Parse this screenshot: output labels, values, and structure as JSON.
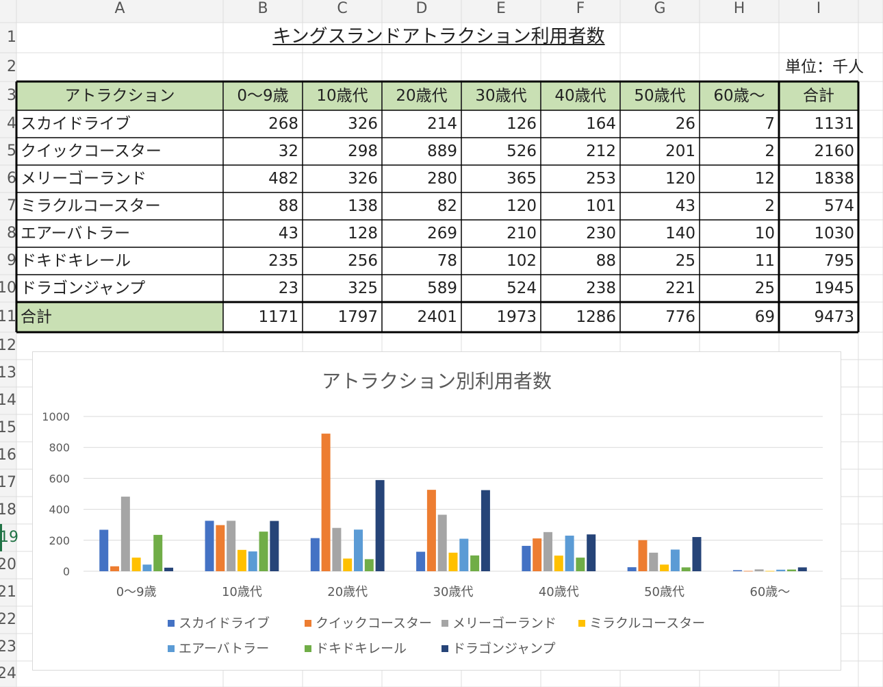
{
  "sheet": {
    "columns": [
      "A",
      "B",
      "C",
      "D",
      "E",
      "F",
      "G",
      "H",
      "I"
    ],
    "rows": [
      "1",
      "2",
      "3",
      "4",
      "5",
      "6",
      "7",
      "8",
      "9",
      "10",
      "11",
      "12",
      "13",
      "14",
      "15",
      "16",
      "17",
      "18",
      "19",
      "20",
      "21",
      "22",
      "23",
      "24"
    ],
    "active_row": "19"
  },
  "table": {
    "title": "キングスランドアトラクション利用者数",
    "unit": "単位：千人",
    "header": [
      "アトラクション",
      "0〜9歳",
      "10歳代",
      "20歳代",
      "30歳代",
      "40歳代",
      "50歳代",
      "60歳〜",
      "合計"
    ],
    "rows": [
      {
        "name": "スカイドライブ",
        "values": [
          268,
          326,
          214,
          126,
          164,
          26,
          7
        ],
        "total": 1131
      },
      {
        "name": "クイックコースター",
        "values": [
          32,
          298,
          889,
          526,
          212,
          201,
          2
        ],
        "total": 2160
      },
      {
        "name": "メリーゴーランド",
        "values": [
          482,
          326,
          280,
          365,
          253,
          120,
          12
        ],
        "total": 1838
      },
      {
        "name": "ミラクルコースター",
        "values": [
          88,
          138,
          82,
          120,
          101,
          43,
          2
        ],
        "total": 574
      },
      {
        "name": "エアーバトラー",
        "values": [
          43,
          128,
          269,
          210,
          230,
          140,
          10
        ],
        "total": 1030
      },
      {
        "name": "ドキドキレール",
        "values": [
          235,
          256,
          78,
          102,
          88,
          25,
          11
        ],
        "total": 795
      },
      {
        "name": "ドラゴンジャンプ",
        "values": [
          23,
          325,
          589,
          524,
          238,
          221,
          25
        ],
        "total": 1945
      }
    ],
    "total_row": {
      "name": "合計",
      "values": [
        1171,
        1797,
        2401,
        1973,
        1286,
        776,
        69
      ],
      "total": 9473
    },
    "header_fill": "#c9e0b4"
  },
  "chart_data": {
    "type": "bar",
    "title": "アトラクション別利用者数",
    "categories": [
      "0〜9歳",
      "10歳代",
      "20歳代",
      "30歳代",
      "40歳代",
      "50歳代",
      "60歳〜"
    ],
    "series": [
      {
        "name": "スカイドライブ",
        "values": [
          268,
          326,
          214,
          126,
          164,
          26,
          7
        ],
        "color": "#4472c4"
      },
      {
        "name": "クイックコースター",
        "values": [
          32,
          298,
          889,
          526,
          212,
          201,
          2
        ],
        "color": "#ed7d31"
      },
      {
        "name": "メリーゴーランド",
        "values": [
          482,
          326,
          280,
          365,
          253,
          120,
          12
        ],
        "color": "#a5a5a5"
      },
      {
        "name": "ミラクルコースター",
        "values": [
          88,
          138,
          82,
          120,
          101,
          43,
          2
        ],
        "color": "#ffc000"
      },
      {
        "name": "エアーバトラー",
        "values": [
          43,
          128,
          269,
          210,
          230,
          140,
          10
        ],
        "color": "#5b9bd5"
      },
      {
        "name": "ドキドキレール",
        "values": [
          235,
          256,
          78,
          102,
          88,
          25,
          11
        ],
        "color": "#70ad47"
      },
      {
        "name": "ドラゴンジャンプ",
        "values": [
          23,
          325,
          589,
          524,
          238,
          221,
          25
        ],
        "color": "#264478"
      }
    ],
    "ylim": [
      0,
      1000
    ],
    "yticks": [
      0,
      200,
      400,
      600,
      800,
      1000
    ],
    "grid": true,
    "legend": "bottom"
  }
}
